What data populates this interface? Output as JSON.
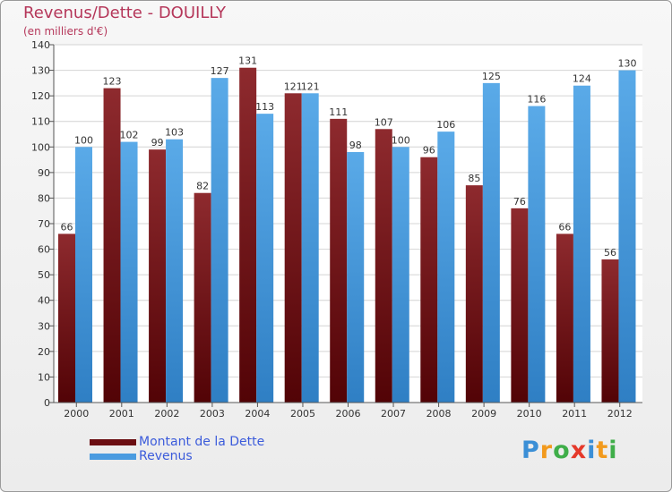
{
  "header": {
    "title": "Revenus/Dette - DOUILLY",
    "subtitle": "(en milliers d'€)"
  },
  "chart_data": {
    "type": "bar",
    "categories": [
      "2000",
      "2001",
      "2002",
      "2003",
      "2004",
      "2005",
      "2006",
      "2007",
      "2008",
      "2009",
      "2010",
      "2011",
      "2012"
    ],
    "series": [
      {
        "name": "Montant de la Dette",
        "color": "#7a1a1e",
        "values": [
          66,
          123,
          99,
          82,
          131,
          121,
          111,
          107,
          96,
          85,
          76,
          66,
          56
        ]
      },
      {
        "name": "Revenus",
        "color": "#4a9be0",
        "values": [
          100,
          102,
          103,
          127,
          113,
          121,
          98,
          100,
          106,
          125,
          116,
          124,
          130
        ]
      }
    ],
    "ylim": [
      0,
      140
    ],
    "yticks": [
      0,
      10,
      20,
      30,
      40,
      50,
      60,
      70,
      80,
      90,
      100,
      110,
      120,
      130,
      140
    ],
    "grid": true,
    "legend_position": "bottom-left",
    "data_labels": true
  },
  "legend": {
    "items": [
      {
        "label": "Montant de la Dette",
        "color": "#6b0e12"
      },
      {
        "label": "Revenus",
        "color": "#4a9be0"
      }
    ]
  },
  "logo": {
    "letters": [
      "P",
      "r",
      "o",
      "x",
      "i",
      "t",
      "i"
    ],
    "colors": [
      "#3b8fd6",
      "#f29a1d",
      "#3fae49",
      "#e5392a",
      "#3b8fd6",
      "#f29a1d",
      "#3fae49"
    ]
  }
}
